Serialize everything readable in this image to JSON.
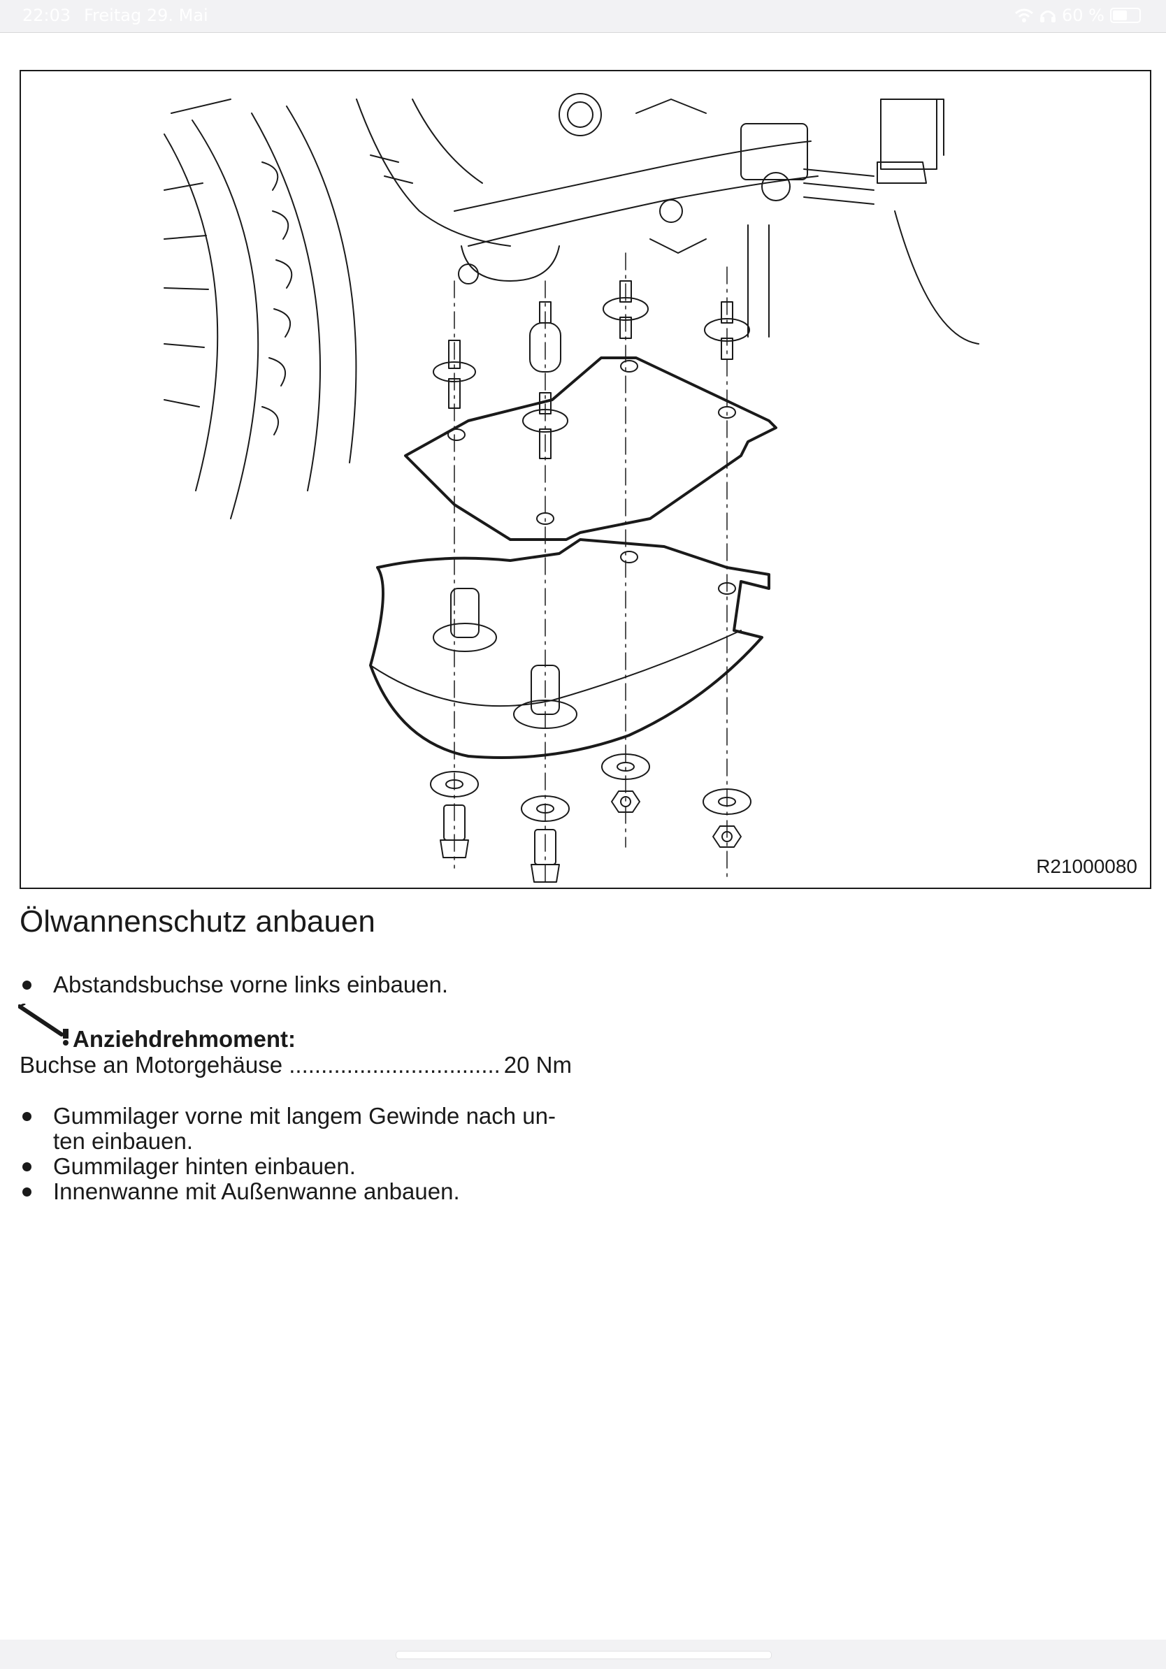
{
  "status_bar": {
    "time": "22:03",
    "date": "Freitag 29. Mai",
    "battery": "60 %",
    "battery_level": 0.6,
    "icons": [
      "wifi-icon",
      "headphones-icon",
      "battery-icon"
    ]
  },
  "figure": {
    "id": "R21000080"
  },
  "content": {
    "title": "Ölwannenschutz anbauen",
    "steps_1": [
      "Abstandsbuchse vorne links einbauen."
    ],
    "torque": {
      "label": "Anziehdrehmoment:",
      "item": "Buchse an Motorgehäuse",
      "value": "20 Nm"
    },
    "steps_2": [
      "Gummilager vorne mit langem Gewinde nach un-\nten einbauen.",
      "Gummilager hinten einbauen.",
      "Innenwanne mit Außenwanne anbauen."
    ]
  },
  "colors": {
    "ink": "#1a1a1a",
    "status_bg": "#f2f2f4"
  }
}
